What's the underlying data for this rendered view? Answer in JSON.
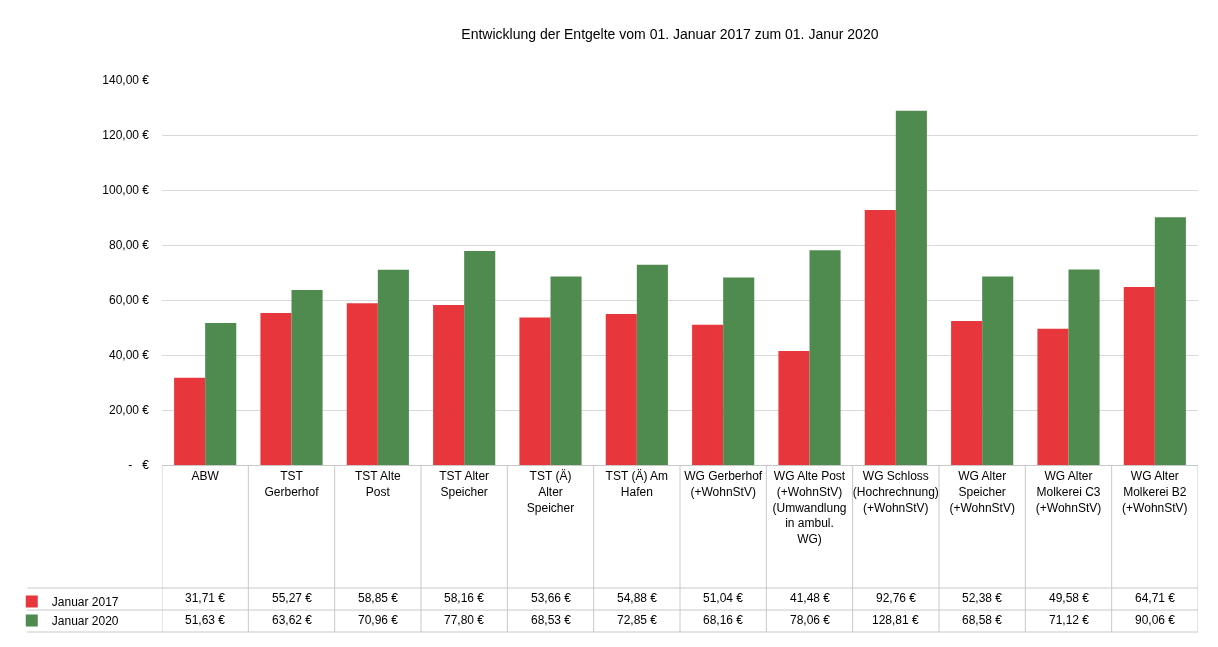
{
  "chart_data": {
    "type": "bar",
    "title": "Entwicklung der Entgelte vom 01. Januar 2017 zum 01. Janur 2020",
    "categories": [
      "ABW",
      "TST Gerberhof",
      "TST Alte Post",
      "TST Alter Speicher",
      "TST (Ä) Alter Speicher",
      "TST (Ä) Am Hafen",
      "WG Gerberhof (+WohnStV)",
      "WG Alte Post (+WohnStV) (Umwandlung in ambul. WG)",
      "WG Schloss (Hochrechnung) (+WohnStV)",
      "WG Alter Speicher (+WohnStV)",
      "WG Alter Molkerei C3 (+WohnStV)",
      "WG Alter Molkerei B2 (+WohnStV)"
    ],
    "series": [
      {
        "name": "Januar 2017",
        "color": "#e8373c",
        "values": [
          31.71,
          55.27,
          58.85,
          58.16,
          53.66,
          54.88,
          51.04,
          41.48,
          92.76,
          52.38,
          49.58,
          64.71
        ],
        "value_labels": [
          "31,71 €",
          "55,27 €",
          "58,85 €",
          "58,16 €",
          "53,66 €",
          "54,88 €",
          "51,04 €",
          "41,48 €",
          "92,76 €",
          "52,38 €",
          "49,58 €",
          "64,71 €"
        ]
      },
      {
        "name": "Januar 2020",
        "color": "#4f8a4f",
        "values": [
          51.63,
          63.62,
          70.96,
          77.8,
          68.53,
          72.85,
          68.16,
          78.06,
          128.81,
          68.58,
          71.12,
          90.06
        ],
        "value_labels": [
          "51,63 €",
          "63,62 €",
          "70,96 €",
          "77,80 €",
          "68,53 €",
          "72,85 €",
          "68,16 €",
          "78,06 €",
          "128,81 €",
          "68,58 €",
          "71,12 €",
          "90,06 €"
        ]
      }
    ],
    "ylim": [
      0,
      140
    ],
    "yticks": [
      {
        "value": 0,
        "label": "-   €"
      },
      {
        "value": 20,
        "label": "20,00 €"
      },
      {
        "value": 40,
        "label": "40,00 €"
      },
      {
        "value": 60,
        "label": "60,00 €"
      },
      {
        "value": 80,
        "label": "80,00 €"
      },
      {
        "value": 100,
        "label": "100,00 €"
      },
      {
        "value": 120,
        "label": "120,00 €"
      },
      {
        "value": 140,
        "label": "140,00 €"
      }
    ],
    "grid": "y",
    "legend": "bottom left"
  }
}
